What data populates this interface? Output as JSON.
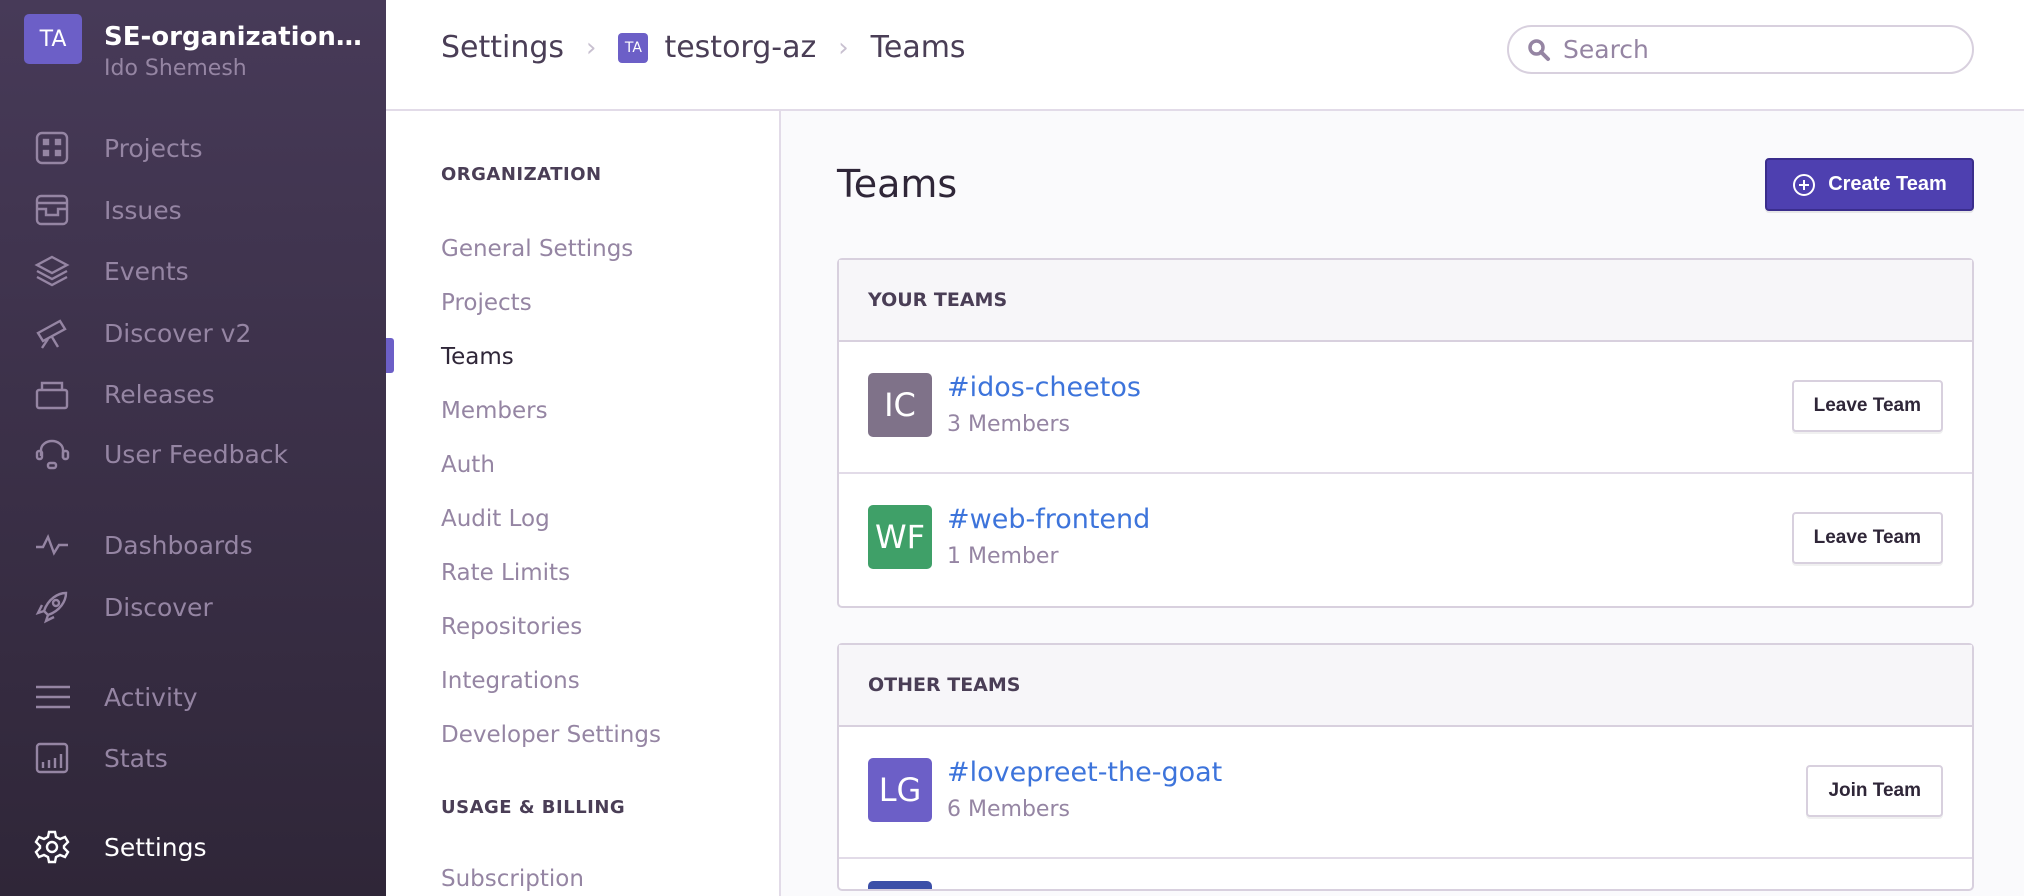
{
  "org": {
    "initials": "TA",
    "name": "SE-organization…",
    "user": "Ido Shemesh",
    "avatar_color": "#6c5fc7"
  },
  "sidebar": {
    "items": [
      {
        "label": "Projects",
        "icon": "projects-icon"
      },
      {
        "label": "Issues",
        "icon": "inbox-icon"
      },
      {
        "label": "Events",
        "icon": "layers-icon"
      },
      {
        "label": "Discover v2",
        "icon": "telescope-icon"
      },
      {
        "label": "Releases",
        "icon": "package-icon"
      },
      {
        "label": "User Feedback",
        "icon": "support-icon"
      },
      {
        "label": "Dashboards",
        "icon": "pulse-icon"
      },
      {
        "label": "Discover",
        "icon": "rocket-icon"
      },
      {
        "label": "Activity",
        "icon": "list-icon"
      },
      {
        "label": "Stats",
        "icon": "bar-chart-icon"
      },
      {
        "label": "Settings",
        "icon": "gear-icon",
        "active": true
      }
    ]
  },
  "header": {
    "breadcrumb": [
      "Settings",
      "testorg-az",
      "Teams"
    ],
    "org_initials": "TA",
    "search_placeholder": "Search"
  },
  "subnav": {
    "section_org": "ORGANIZATION",
    "items": [
      "General Settings",
      "Projects",
      "Teams",
      "Members",
      "Auth",
      "Audit Log",
      "Rate Limits",
      "Repositories",
      "Integrations",
      "Developer Settings"
    ],
    "active": "Teams",
    "section_billing": "USAGE & BILLING",
    "billing_items": [
      "Subscription"
    ]
  },
  "main": {
    "title": "Teams",
    "create_label": "Create Team",
    "your_teams": {
      "title": "YOUR TEAMS",
      "teams": [
        {
          "initials": "IC",
          "name": "#idos-cheetos",
          "members": "3 Members",
          "action": "Leave Team",
          "color": "#7f7289"
        },
        {
          "initials": "WF",
          "name": "#web-frontend",
          "members": "1 Member",
          "action": "Leave Team",
          "color": "#3fa068"
        }
      ]
    },
    "other_teams": {
      "title": "OTHER TEAMS",
      "teams": [
        {
          "initials": "LG",
          "name": "#lovepreet-the-goat",
          "members": "6 Members",
          "action": "Join Team",
          "color": "#6c5fc7"
        }
      ],
      "partial_avatar_color": "#3b4fa8"
    }
  }
}
